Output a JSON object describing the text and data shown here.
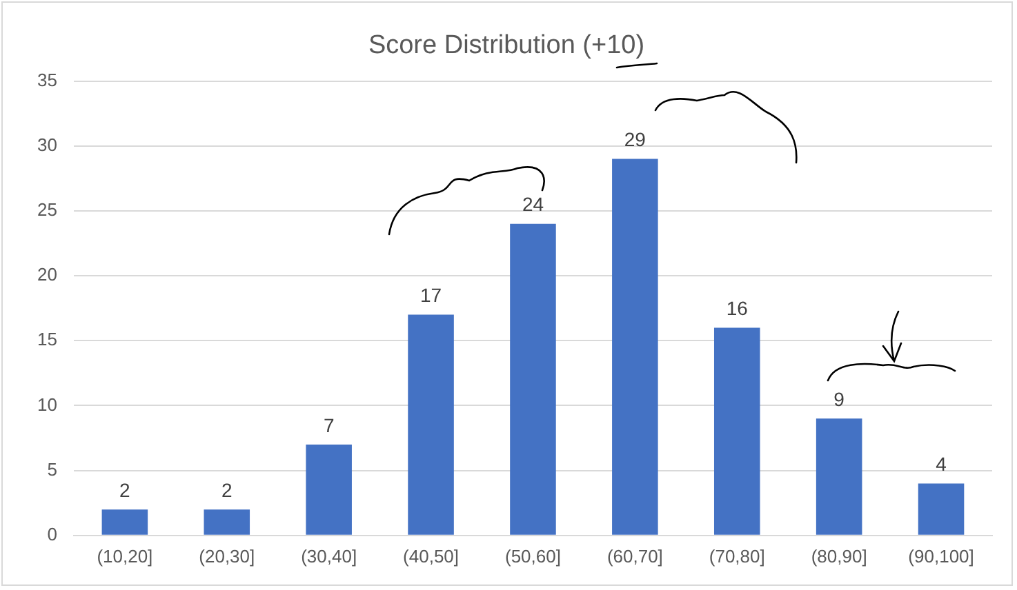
{
  "chart_data": {
    "type": "bar",
    "title": "Score Distribution (+10)",
    "categories": [
      "(10,20]",
      "(20,30]",
      "(30,40]",
      "(40,50]",
      "(50,60]",
      "(60,70]",
      "(70,80]",
      "(80,90]",
      "(90,100]"
    ],
    "values": [
      2,
      2,
      7,
      17,
      24,
      29,
      16,
      9,
      4
    ],
    "color": "#4472c4",
    "ylim": [
      0,
      35
    ],
    "yticks": [
      0,
      5,
      10,
      15,
      20,
      25,
      30,
      35
    ],
    "grid": "y",
    "data_labels": true
  }
}
